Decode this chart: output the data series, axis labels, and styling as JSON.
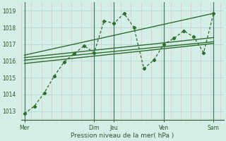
{
  "xlabel": "Pression niveau de la mer( hPa )",
  "ylim": [
    1012.5,
    1019.5
  ],
  "yticks": [
    1013,
    1014,
    1015,
    1016,
    1017,
    1018,
    1019
  ],
  "xtick_labels": [
    "Mer",
    "Dim",
    "Jeu",
    "Ven",
    "Sam"
  ],
  "xtick_pos": [
    0.0,
    3.5,
    4.5,
    7.0,
    9.5
  ],
  "vline_pos": [
    0.0,
    3.5,
    4.5,
    7.0,
    9.5
  ],
  "bg_color": "#d4eee8",
  "grid_major_color": "#b8ddd5",
  "grid_minor_color": "#e8c8c8",
  "line_color": "#2d6e2d",
  "main_x": [
    0.0,
    0.5,
    1.0,
    1.5,
    2.0,
    2.5,
    3.0,
    3.5,
    4.0,
    4.5,
    5.0,
    5.5,
    6.0,
    6.5,
    7.0,
    7.5,
    8.0,
    8.5,
    9.0,
    9.5
  ],
  "main_y": [
    1012.85,
    1013.3,
    1014.1,
    1015.1,
    1015.95,
    1016.45,
    1016.9,
    1016.5,
    1018.4,
    1018.25,
    1018.85,
    1018.0,
    1015.55,
    1016.05,
    1017.0,
    1017.35,
    1017.8,
    1017.45,
    1016.5,
    1018.85
  ],
  "trend1_x": [
    0.0,
    9.5
  ],
  "trend1_y": [
    1016.05,
    1017.15
  ],
  "trend2_x": [
    0.0,
    9.5
  ],
  "trend2_y": [
    1016.2,
    1017.4
  ],
  "trend3_x": [
    0.0,
    9.5
  ],
  "trend3_y": [
    1016.35,
    1018.85
  ],
  "trend4_x": [
    0.0,
    9.5
  ],
  "trend4_y": [
    1015.85,
    1017.05
  ],
  "xlim": [
    -0.15,
    10.0
  ]
}
